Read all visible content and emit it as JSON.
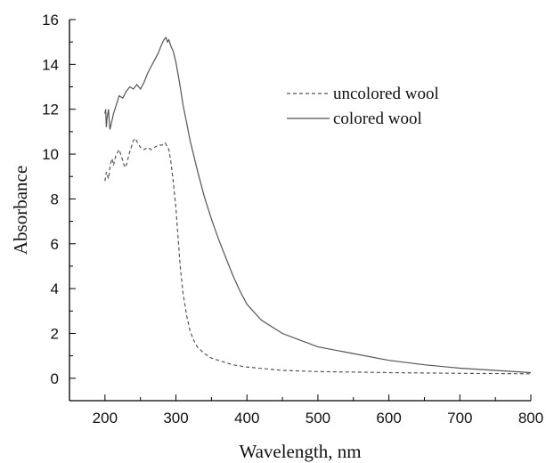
{
  "chart_data": {
    "type": "line",
    "xlabel": "Wavelength, nm",
    "ylabel": "Absorbance",
    "xlim": [
      150,
      800
    ],
    "ylim": [
      -1,
      16
    ],
    "xticks": [
      200,
      300,
      400,
      500,
      600,
      700,
      800
    ],
    "yticks": [
      0,
      2,
      4,
      6,
      8,
      10,
      12,
      14,
      16
    ],
    "grid": false,
    "legend_position": "top-right",
    "series": [
      {
        "name": "uncolored wool",
        "style": "dashed",
        "color": "#555555",
        "x": [
          200,
          202,
          205,
          208,
          210,
          212,
          215,
          218,
          220,
          225,
          228,
          230,
          235,
          240,
          243,
          246,
          250,
          255,
          260,
          265,
          270,
          275,
          280,
          285,
          288,
          290,
          293,
          296,
          300,
          303,
          306,
          310,
          315,
          320,
          325,
          330,
          340,
          350,
          360,
          380,
          400,
          450,
          500,
          600,
          700,
          800
        ],
        "y": [
          8.8,
          9.2,
          8.9,
          9.6,
          9.8,
          9.5,
          9.9,
          10.1,
          10.2,
          9.7,
          9.4,
          9.5,
          10.1,
          10.6,
          10.7,
          10.5,
          10.3,
          10.2,
          10.3,
          10.2,
          10.3,
          10.4,
          10.4,
          10.5,
          10.3,
          10.2,
          9.6,
          8.8,
          7.6,
          6.3,
          5.0,
          3.8,
          2.8,
          2.1,
          1.7,
          1.4,
          1.1,
          0.9,
          0.8,
          0.6,
          0.5,
          0.35,
          0.3,
          0.25,
          0.22,
          0.2
        ]
      },
      {
        "name": "colored wool",
        "style": "solid",
        "color": "#555555",
        "x": [
          200,
          201,
          202,
          203,
          205,
          207,
          210,
          212,
          215,
          218,
          220,
          225,
          230,
          235,
          240,
          245,
          250,
          255,
          260,
          265,
          270,
          275,
          280,
          283,
          286,
          288,
          290,
          293,
          296,
          300,
          305,
          310,
          320,
          330,
          340,
          350,
          360,
          370,
          380,
          390,
          400,
          420,
          450,
          500,
          550,
          600,
          650,
          700,
          750,
          800
        ],
        "y": [
          11.8,
          12.0,
          11.2,
          11.6,
          12.0,
          11.1,
          11.5,
          11.8,
          12.1,
          12.4,
          12.6,
          12.5,
          12.8,
          13.0,
          12.9,
          13.1,
          12.9,
          13.2,
          13.6,
          13.9,
          14.2,
          14.5,
          14.9,
          15.1,
          15.2,
          15.0,
          15.1,
          14.8,
          14.6,
          14.1,
          13.2,
          12.2,
          10.6,
          9.3,
          8.1,
          7.1,
          6.2,
          5.4,
          4.6,
          3.9,
          3.3,
          2.6,
          2.0,
          1.4,
          1.1,
          0.8,
          0.6,
          0.45,
          0.35,
          0.25
        ]
      }
    ]
  }
}
